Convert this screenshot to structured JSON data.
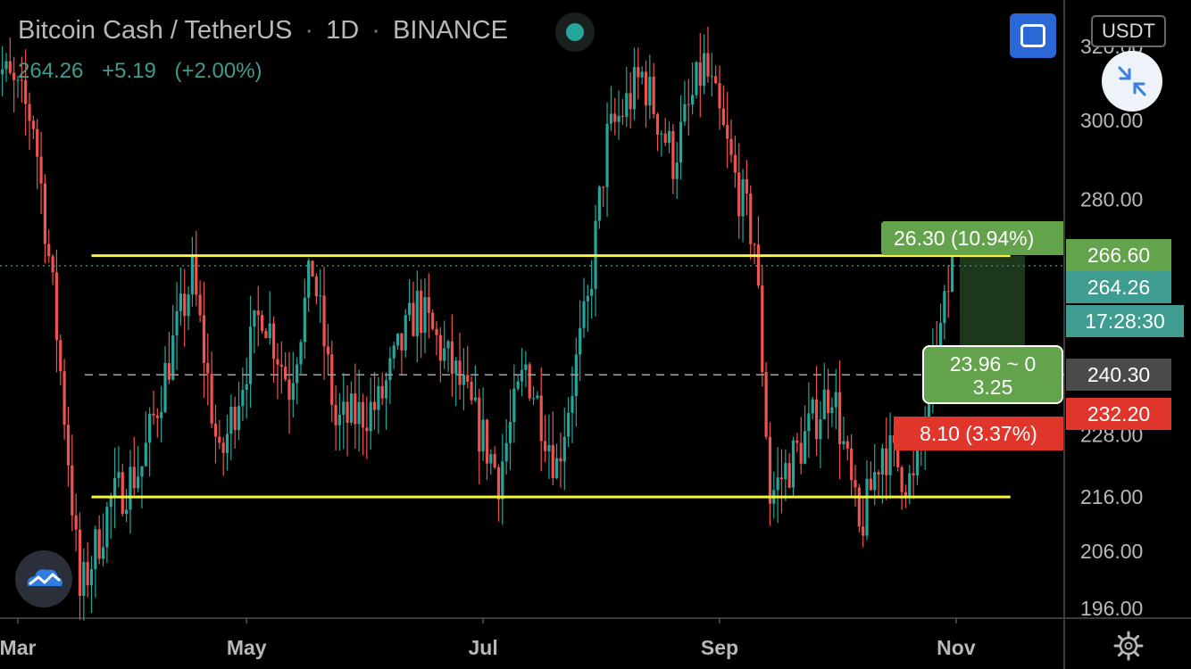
{
  "legend": {
    "symbol": "Bitcoin Cash / TetherUS",
    "interval": "1D",
    "exchange": "BINANCE",
    "sep1": "·",
    "sep2": "·",
    "last": "264.26",
    "change": "+5.19",
    "change_pct": "(+2.00%)"
  },
  "toolbar": {
    "currency_label": "USDT",
    "fullscreen_icon": "fullscreen-icon",
    "collapse_icon": "collapse-arrows-icon",
    "status_icon": "market-status-dot-icon",
    "logo_icon": "tradingview-cloud-logo-icon",
    "settings_icon": "gear-icon"
  },
  "price_tags": {
    "target": "266.60",
    "last": "264.26",
    "countdown": "17:28:30",
    "entry": "240.30",
    "stop": "232.20"
  },
  "position_tool": {
    "target_label": "26.30 (10.94%)",
    "stop_label": "8.10 (3.37%)",
    "ratio_line1": "23.96 ~ 0",
    "ratio_line2": "3.25"
  },
  "colors": {
    "background": "#000000",
    "up": "#26a69a",
    "down": "#ef5350",
    "support_resistance": "#f5f542",
    "target_zone": "#63a34c",
    "stop_zone": "#e0352b",
    "grid_text": "#b8b8b8"
  },
  "chart_data": {
    "type": "candlestick",
    "title": "Bitcoin Cash / TetherUS · 1D · BINANCE",
    "x_axis": {
      "ticks": [
        "Mar",
        "May",
        "Jul",
        "Sep",
        "Nov"
      ]
    },
    "y_axis": {
      "scale": "log",
      "ticks": [
        320,
        300,
        280,
        228,
        216,
        206,
        196
      ],
      "tick_labels": [
        "320.00",
        "300.00",
        "280.00",
        "228.00",
        "216.00",
        "206.00",
        "196.00"
      ],
      "range": [
        193,
        327
      ]
    },
    "horizontal_lines": [
      {
        "name": "resistance",
        "from": "Mar 20",
        "to": "Nov 15",
        "value": 266.6,
        "color": "#f5f542"
      },
      {
        "name": "support",
        "from": "Mar 20",
        "to": "Nov 15",
        "value": 216.0,
        "color": "#f5f542"
      }
    ],
    "current_price": 264.26,
    "entry_price": 240.3,
    "target_price": 266.6,
    "stop_price": 232.2,
    "price_path": [
      {
        "date": "Feb 25",
        "price": 318
      },
      {
        "date": "Mar 05",
        "price": 300
      },
      {
        "date": "Mar 10",
        "price": 258
      },
      {
        "date": "Mar 17",
        "price": 198
      },
      {
        "date": "Mar 25",
        "price": 215
      },
      {
        "date": "Apr 05",
        "price": 222
      },
      {
        "date": "Apr 18",
        "price": 262
      },
      {
        "date": "Apr 25",
        "price": 222
      },
      {
        "date": "May 05",
        "price": 255
      },
      {
        "date": "May 12",
        "price": 238
      },
      {
        "date": "May 18",
        "price": 264
      },
      {
        "date": "May 24",
        "price": 230
      },
      {
        "date": "Jun 05",
        "price": 234
      },
      {
        "date": "Jun 15",
        "price": 255
      },
      {
        "date": "Jun 25",
        "price": 240
      },
      {
        "date": "Jul 05",
        "price": 220
      },
      {
        "date": "Jul 12",
        "price": 242
      },
      {
        "date": "Jul 20",
        "price": 222
      },
      {
        "date": "Jul 28",
        "price": 255
      },
      {
        "date": "Aug 03",
        "price": 295
      },
      {
        "date": "Aug 12",
        "price": 312
      },
      {
        "date": "Aug 20",
        "price": 290
      },
      {
        "date": "Aug 28",
        "price": 315
      },
      {
        "date": "Sep 05",
        "price": 285
      },
      {
        "date": "Sep 10",
        "price": 270
      },
      {
        "date": "Sep 14",
        "price": 216
      },
      {
        "date": "Sep 22",
        "price": 226
      },
      {
        "date": "Sep 30",
        "price": 238
      },
      {
        "date": "Oct 06",
        "price": 209
      },
      {
        "date": "Oct 12",
        "price": 226
      },
      {
        "date": "Oct 20",
        "price": 218
      },
      {
        "date": "Oct 26",
        "price": 244
      },
      {
        "date": "Oct 30",
        "price": 264
      }
    ]
  }
}
